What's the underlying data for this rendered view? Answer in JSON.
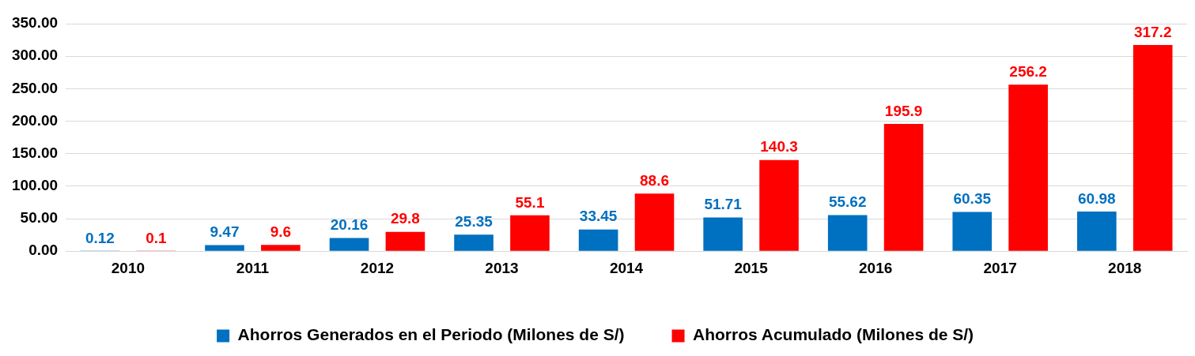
{
  "chart_data": {
    "type": "bar",
    "categories": [
      "2010",
      "2011",
      "2012",
      "2013",
      "2014",
      "2015",
      "2016",
      "2017",
      "2018"
    ],
    "series": [
      {
        "name": "Ahorros Generados en el Periodo (Milones de S/)",
        "color": "#0070c0",
        "values": [
          0.12,
          9.47,
          20.16,
          25.35,
          33.45,
          51.71,
          55.62,
          60.35,
          60.98
        ]
      },
      {
        "name": "Ahorros Acumulado (Milones de S/)",
        "color": "#ff0000",
        "values": [
          0.1,
          9.6,
          29.8,
          55.1,
          88.6,
          140.3,
          195.9,
          256.2,
          317.2
        ]
      }
    ],
    "ylim": [
      0,
      350
    ],
    "yticks": [
      {
        "value": 0,
        "label": "0.00"
      },
      {
        "value": 50,
        "label": "50.00"
      },
      {
        "value": 100,
        "label": "100.00"
      },
      {
        "value": 150,
        "label": "150.00"
      },
      {
        "value": 200,
        "label": "200.00"
      },
      {
        "value": 250,
        "label": "250.00"
      },
      {
        "value": 300,
        "label": "300.00"
      },
      {
        "value": 350,
        "label": "350.00"
      }
    ],
    "grid": "y",
    "legend": "bottom",
    "data_labels": true
  }
}
